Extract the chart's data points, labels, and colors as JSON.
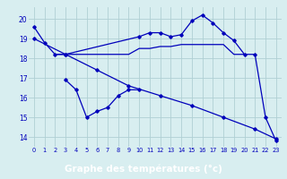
{
  "background_color": "#d8eef0",
  "grid_color": "#b0d0d4",
  "line_color": "#0000bb",
  "xlabel": "Graphe des températures (°c)",
  "xlabel_fontsize": 7.5,
  "xlabel_bg": "#2244aa",
  "ylim": [
    13.5,
    20.6
  ],
  "xlim": [
    -0.5,
    23.5
  ],
  "yticks": [
    14,
    15,
    16,
    17,
    18,
    19,
    20
  ],
  "xticks": [
    0,
    1,
    2,
    3,
    4,
    5,
    6,
    7,
    8,
    9,
    10,
    11,
    12,
    13,
    14,
    15,
    16,
    17,
    18,
    19,
    20,
    21,
    22,
    23
  ],
  "series1_x": [
    0,
    1,
    2,
    3,
    10,
    11,
    12,
    13,
    14,
    15,
    16,
    17,
    18,
    19,
    20,
    21,
    22,
    23
  ],
  "series1_y": [
    19.6,
    18.8,
    18.2,
    18.2,
    19.1,
    19.3,
    19.3,
    19.1,
    19.2,
    19.9,
    20.2,
    19.8,
    19.3,
    18.9,
    18.2,
    18.2,
    15.0,
    13.8
  ],
  "series2_x": [
    2,
    3,
    4,
    5,
    6,
    7,
    8,
    9,
    10,
    11,
    12,
    13,
    14,
    15,
    16,
    17,
    18,
    19,
    20
  ],
  "series2_y": [
    18.2,
    18.2,
    18.2,
    18.2,
    18.2,
    18.2,
    18.2,
    18.2,
    18.5,
    18.5,
    18.6,
    18.6,
    18.7,
    18.7,
    18.7,
    18.7,
    18.7,
    18.2,
    18.2
  ],
  "series3_x": [
    0,
    3,
    6,
    9,
    12,
    15,
    18,
    21,
    23
  ],
  "series3_y": [
    19.0,
    18.2,
    17.4,
    16.6,
    16.1,
    15.6,
    15.0,
    14.4,
    13.9
  ],
  "series4_x": [
    3,
    4,
    5,
    6,
    7,
    8,
    9,
    10
  ],
  "series4_y": [
    16.9,
    16.4,
    15.0,
    15.3,
    15.5,
    16.1,
    16.4,
    16.4
  ]
}
